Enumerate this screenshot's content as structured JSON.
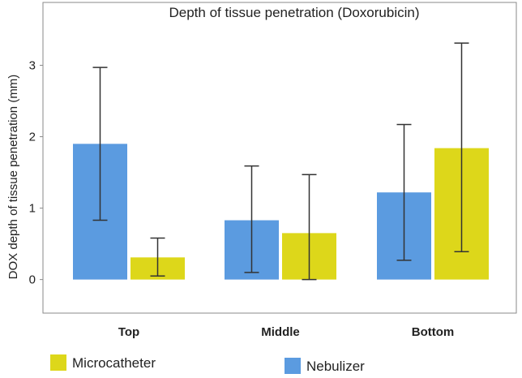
{
  "chart_data": {
    "type": "bar",
    "title": "Depth of tissue penetration (Doxorubicin)",
    "xlabel": "",
    "ylabel": "DOX depth of tissue penetration (mm)",
    "categories": [
      "Top",
      "Middle",
      "Bottom"
    ],
    "ylim": [
      -0.47,
      3.88
    ],
    "yticks": [
      0,
      1,
      2,
      3
    ],
    "yticklabels": [
      "0",
      "1",
      "2",
      "3"
    ],
    "grid": false,
    "legend_position": "bottom",
    "series": [
      {
        "name": "Nebulizer",
        "color": "#5B9BE0",
        "values": [
          1.9,
          0.83,
          1.22
        ],
        "error_low": [
          0.83,
          0.1,
          0.27
        ],
        "error_high": [
          2.97,
          1.59,
          2.17
        ]
      },
      {
        "name": "Microcatheter",
        "color": "#DDD71A",
        "values": [
          0.31,
          0.65,
          1.84
        ],
        "error_low": [
          0.05,
          0.0,
          0.39
        ],
        "error_high": [
          0.58,
          1.47,
          3.31
        ]
      }
    ],
    "legend_order": [
      "Microcatheter",
      "Nebulizer"
    ]
  }
}
